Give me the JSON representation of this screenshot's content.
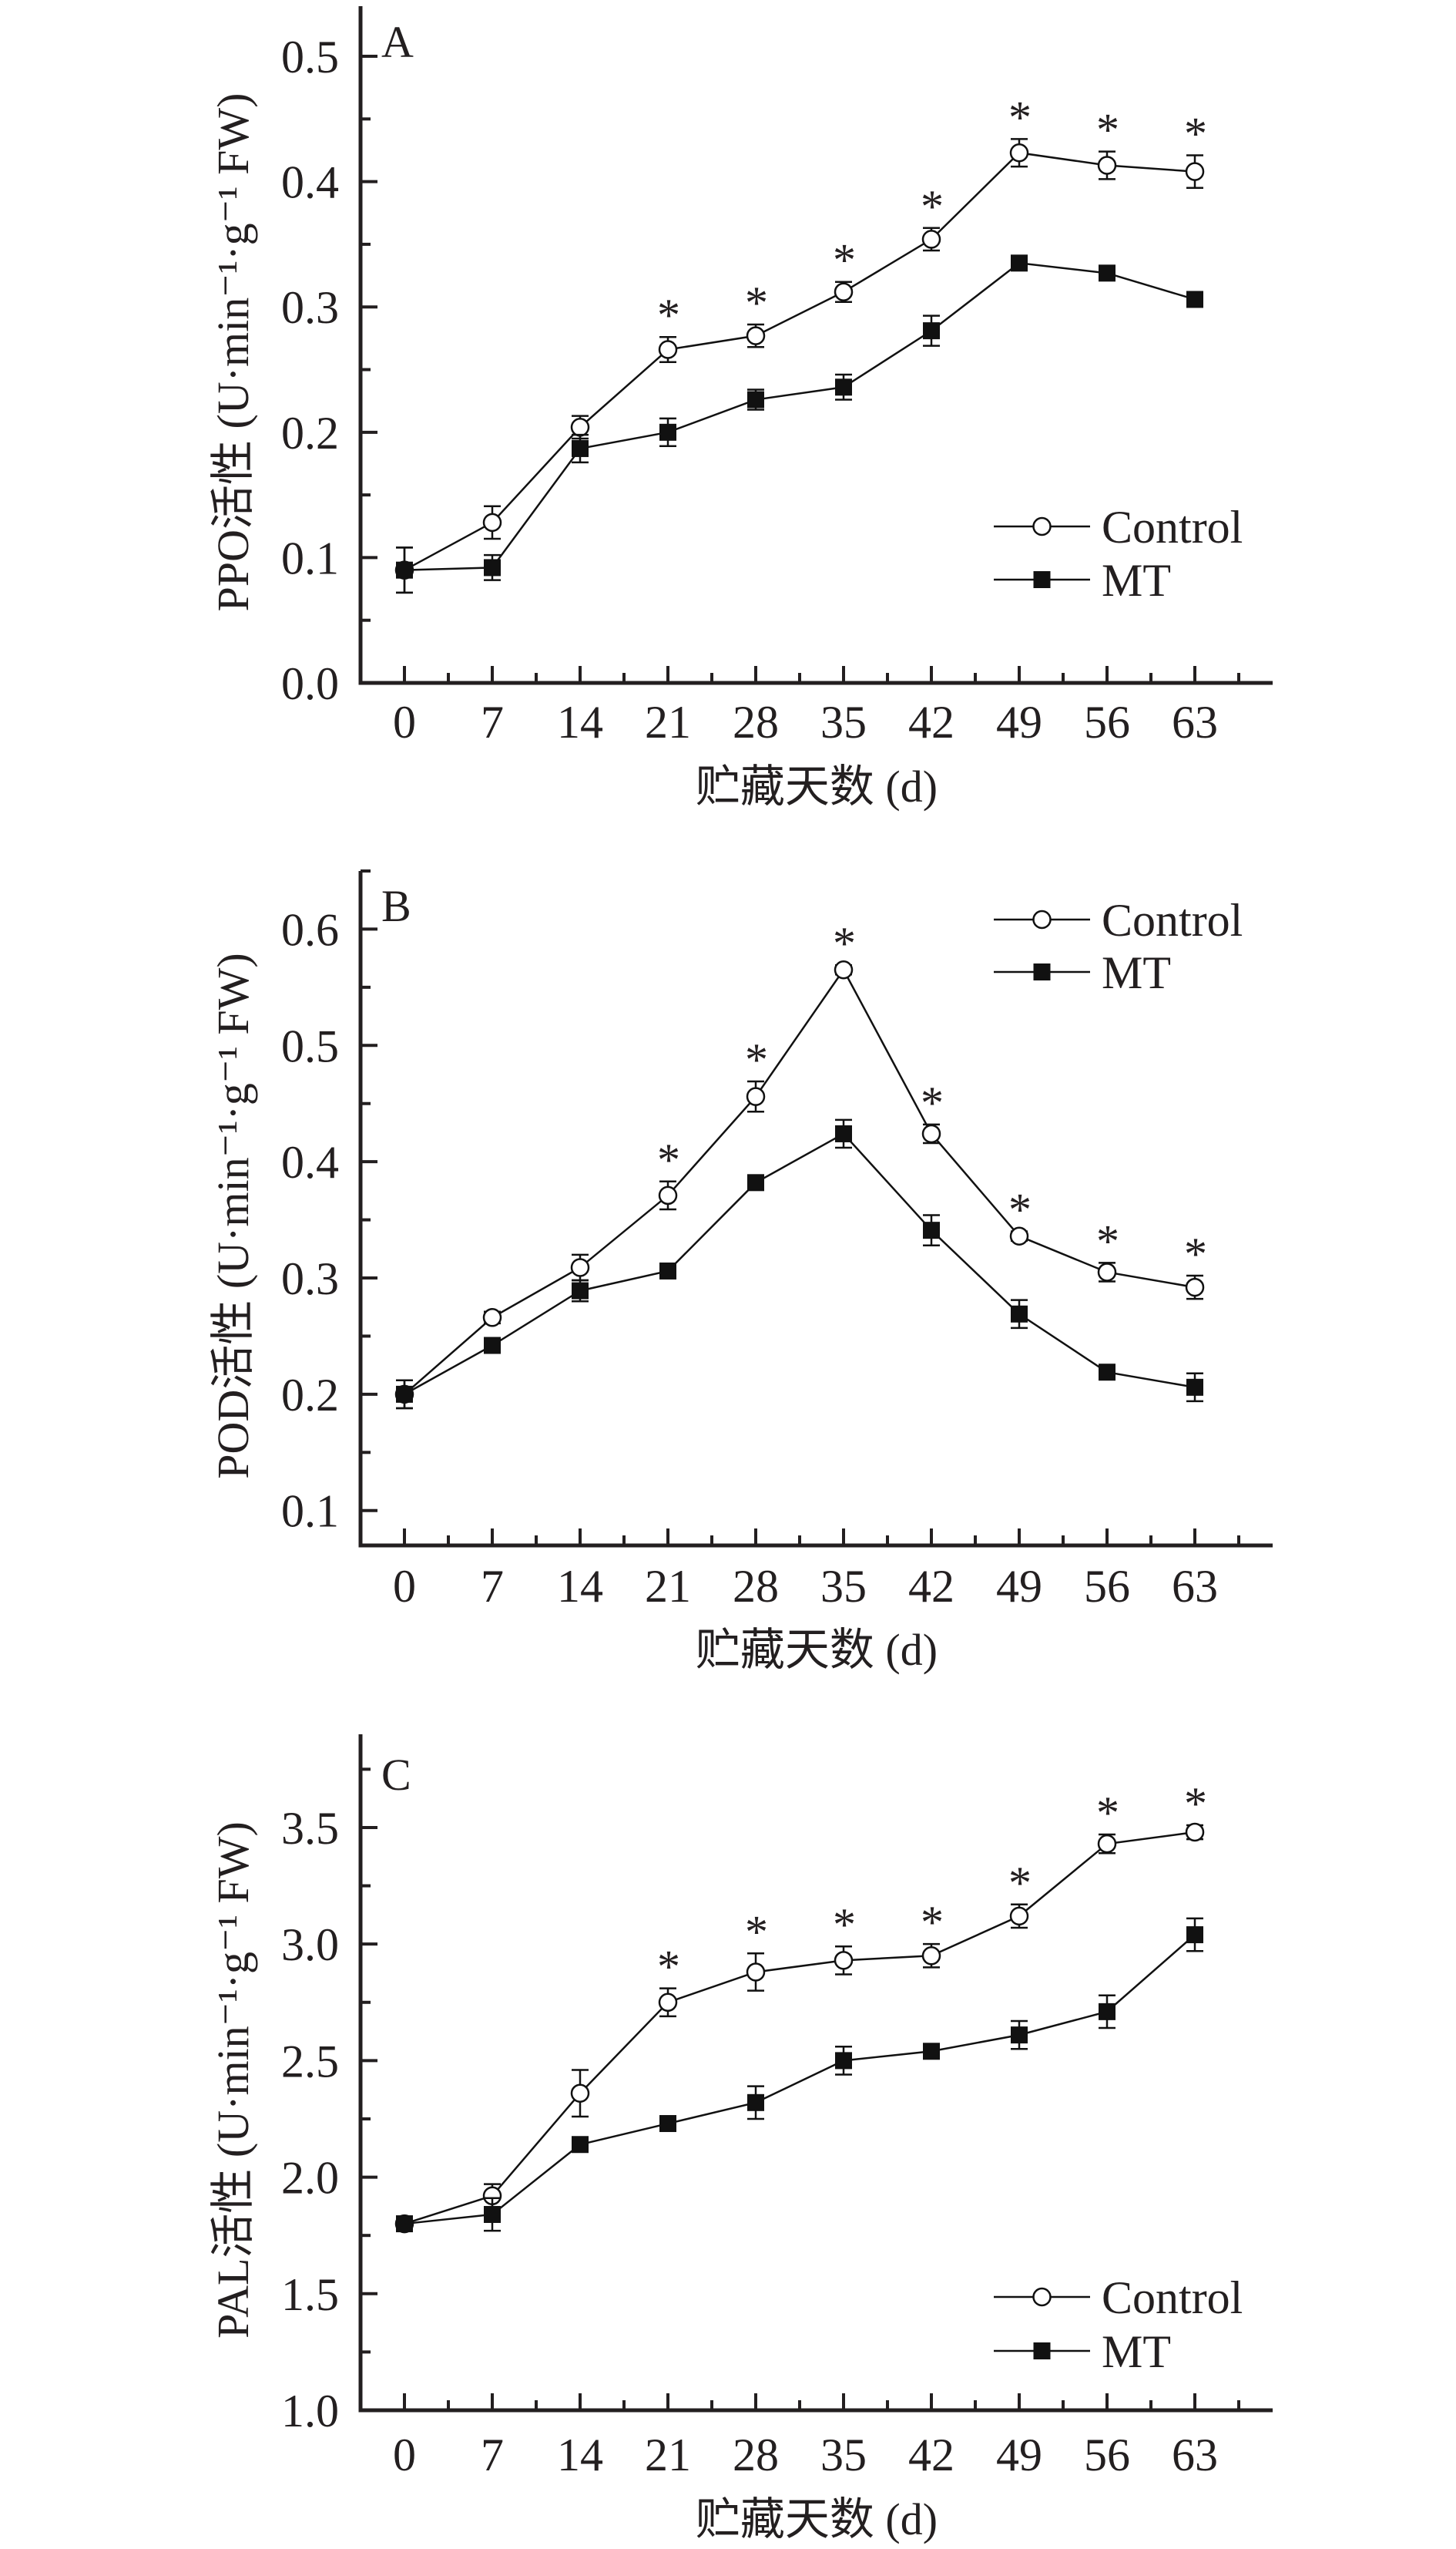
{
  "chart_data": [
    {
      "type": "line",
      "panel_label": "A",
      "x": [
        0,
        7,
        14,
        21,
        28,
        35,
        42,
        49,
        56,
        63
      ],
      "x_tick_labels": [
        "0",
        "7",
        "14",
        "21",
        "28",
        "35",
        "42",
        "49",
        "56",
        "63"
      ],
      "xlabel": "贮藏天数 (d)",
      "ylabel": "PPO活性 (U·min⁻¹·g⁻¹ FW)",
      "ylim": [
        0,
        0.54
      ],
      "y_ticks": [
        0.0,
        0.1,
        0.2,
        0.3,
        0.4,
        0.5
      ],
      "y_tick_labels": [
        "0.0",
        "0.1",
        "0.2",
        "0.3",
        "0.4",
        "0.5"
      ],
      "y_minor_step": 0.05,
      "grid": false,
      "legend_position": "lower-right",
      "series": [
        {
          "name": "Control",
          "marker": "open-circle",
          "values": [
            0.09,
            0.128,
            0.204,
            0.266,
            0.277,
            0.312,
            0.354,
            0.423,
            0.413,
            0.408
          ],
          "errors": [
            0.018,
            0.013,
            0.009,
            0.01,
            0.009,
            0.008,
            0.009,
            0.011,
            0.011,
            0.013
          ]
        },
        {
          "name": "MT",
          "marker": "filled-square",
          "values": [
            0.09,
            0.092,
            0.187,
            0.2,
            0.226,
            0.236,
            0.281,
            0.335,
            0.327,
            0.306
          ],
          "errors": [
            0.018,
            0.01,
            0.011,
            0.011,
            0.008,
            0.01,
            0.012,
            0.003,
            0.003,
            0.003
          ]
        }
      ],
      "significance_marker": "*",
      "significant_x": [
        21,
        28,
        35,
        42,
        49,
        56,
        63
      ]
    },
    {
      "type": "line",
      "panel_label": "B",
      "x": [
        0,
        7,
        14,
        21,
        28,
        35,
        42,
        49,
        56,
        63
      ],
      "x_tick_labels": [
        "0",
        "7",
        "14",
        "21",
        "28",
        "35",
        "42",
        "49",
        "56",
        "63"
      ],
      "xlabel": "贮藏天数 (d)",
      "ylabel": "POD活性 (U·min⁻¹·g⁻¹ FW)",
      "ylim": [
        0.07,
        0.65
      ],
      "y_ticks": [
        0.1,
        0.2,
        0.3,
        0.4,
        0.5,
        0.6
      ],
      "y_tick_labels": [
        "0.1",
        "0.2",
        "0.3",
        "0.4",
        "0.5",
        "0.6"
      ],
      "y_minor_step": 0.05,
      "grid": false,
      "legend_position": "top-right",
      "series": [
        {
          "name": "Control",
          "marker": "open-circle",
          "values": [
            0.2,
            0.266,
            0.309,
            0.371,
            0.456,
            0.565,
            0.424,
            0.336,
            0.305,
            0.292
          ],
          "errors": [
            0.012,
            0.005,
            0.011,
            0.012,
            0.013,
            0.004,
            0.008,
            0.004,
            0.008,
            0.01
          ]
        },
        {
          "name": "MT",
          "marker": "filled-square",
          "values": [
            0.2,
            0.242,
            0.289,
            0.306,
            0.382,
            0.424,
            0.341,
            0.269,
            0.219,
            0.206
          ],
          "errors": [
            0.012,
            0.004,
            0.009,
            0.004,
            0.004,
            0.012,
            0.013,
            0.012,
            0.004,
            0.012
          ]
        }
      ],
      "significance_marker": "*",
      "significant_x": [
        21,
        28,
        35,
        42,
        49,
        56,
        63
      ]
    },
    {
      "type": "line",
      "panel_label": "C",
      "x": [
        0,
        7,
        14,
        21,
        28,
        35,
        42,
        49,
        56,
        63
      ],
      "x_tick_labels": [
        "0",
        "7",
        "14",
        "21",
        "28",
        "35",
        "42",
        "49",
        "56",
        "63"
      ],
      "xlabel": "贮藏天数 (d)",
      "ylabel": "PAL活性 (U·min⁻¹·g⁻¹ FW)",
      "ylim": [
        1.0,
        3.9
      ],
      "y_ticks": [
        1.0,
        1.5,
        2.0,
        2.5,
        3.0,
        3.5
      ],
      "y_tick_labels": [
        "1.0",
        "1.5",
        "2.0",
        "2.5",
        "3.0",
        "3.5"
      ],
      "y_minor_step": 0.25,
      "grid": false,
      "legend_position": "lower-right",
      "series": [
        {
          "name": "Control",
          "marker": "open-circle",
          "values": [
            1.8,
            1.92,
            2.36,
            2.75,
            2.88,
            2.93,
            2.95,
            3.12,
            3.43,
            3.48
          ],
          "errors": [
            0.03,
            0.05,
            0.1,
            0.06,
            0.08,
            0.06,
            0.05,
            0.05,
            0.04,
            0.03
          ]
        },
        {
          "name": "MT",
          "marker": "filled-square",
          "values": [
            1.8,
            1.84,
            2.14,
            2.23,
            2.32,
            2.5,
            2.54,
            2.61,
            2.71,
            3.04
          ],
          "errors": [
            0.03,
            0.07,
            0.03,
            0.03,
            0.07,
            0.06,
            0.03,
            0.06,
            0.07,
            0.07
          ]
        }
      ],
      "significance_marker": "*",
      "significant_x": [
        21,
        28,
        35,
        42,
        49,
        56,
        63
      ]
    }
  ],
  "colors": {
    "ink": "#231f20",
    "marker_fill_mt": "#111111",
    "marker_fill_control": "#ffffff",
    "background": "#ffffff"
  }
}
